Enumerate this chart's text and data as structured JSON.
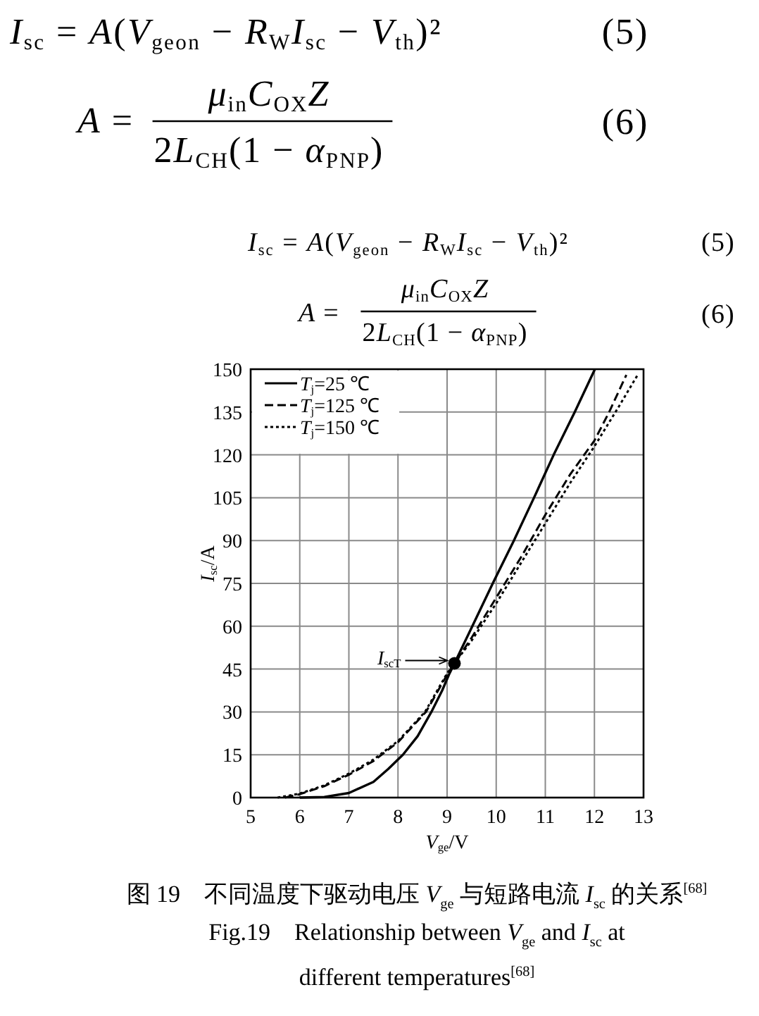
{
  "chart_data": {
    "type": "line",
    "xlabel": "V$_{ge}$/V",
    "ylabel": "I$_{sc}$/A",
    "xlim": [
      5,
      13
    ],
    "xticks": [
      5,
      6,
      7,
      8,
      9,
      10,
      11,
      12,
      13
    ],
    "ylim": [
      0,
      150
    ],
    "yticks": [
      0,
      15,
      30,
      45,
      60,
      75,
      90,
      105,
      120,
      135,
      150
    ],
    "grid": true,
    "legend": "top left",
    "series": [
      {
        "name": "T$_{j}$=25 ℃",
        "color": "#000000",
        "line_style": "solid",
        "x": [
          6.0,
          6.5,
          7,
          7.5,
          7.8,
          8.1,
          8.4,
          8.68,
          8.9,
          9.05,
          9.15,
          9.5,
          9.93,
          10.36,
          10.77,
          11.17,
          11.6,
          12.01
        ],
        "values": [
          0,
          0.2,
          1.6,
          5.5,
          10,
          15,
          21.5,
          30,
          37.5,
          43.5,
          47,
          59.5,
          75,
          90,
          105,
          120,
          135,
          150
        ]
      },
      {
        "name": "T$_{j}$=125 ℃",
        "color": "#000000",
        "line_style": "dashed",
        "x": [
          5.7,
          6,
          6.5,
          7,
          7.5,
          8,
          8.57,
          9,
          9.15,
          9.5,
          10,
          10.5,
          11,
          11.5,
          12,
          12.3,
          12.65
        ],
        "values": [
          0,
          1.2,
          4,
          8,
          12.8,
          19.4,
          30,
          43,
          47,
          56,
          70,
          84,
          99,
          113,
          125,
          135,
          148
        ]
      },
      {
        "name": "T$_{j}$=150 ℃",
        "color": "#000000",
        "line_style": "dotted",
        "x": [
          5.55,
          6,
          6.5,
          7,
          7.5,
          8,
          8.55,
          9,
          9.15,
          9.5,
          10,
          10.5,
          11,
          11.5,
          12,
          12.5,
          12.88
        ],
        "values": [
          0,
          1.4,
          4.3,
          8.4,
          13.3,
          19.8,
          30,
          43.5,
          47,
          55,
          68,
          82,
          96,
          110,
          123,
          137,
          148
        ]
      },
      {
        "type": "scatter",
        "color": "#000000",
        "marker": "circle",
        "x": [
          9.15
        ],
        "values": [
          47
        ]
      }
    ],
    "annotations": [
      "I$_{sc}$ = A(V$_{geon}$ − R$_{W}$I$_{sc}$ − V$_{th}$)²",
      "(5)",
      "A =",
      "μ$_{in}$C$_{OX}$Z",
      "2L$_{CH}$(1 − α$_{PNP}$)",
      "(6)",
      "I$_{sc}$ = A(V$_{geon}$ − R$_{W}$I$_{sc}$ − V$_{th}$)²",
      "(5)",
      "A =",
      "μ$_{in}$C$_{OX}$Z",
      "2L$_{CH}$(1 − α$_{PNP}$)",
      "(6)",
      {
        "text": "I$_{scT}$",
        "x": 9.15,
        "y": 47
      },
      "图 19　不同温度下驱动电压 V$_{ge}$ 与短路电流 I$_{sc}$ 的关系$^{[68]}$",
      "Fig.19　Relationship between V$_{ge}$ and I$_{sc}$ at different temperatures$^{[68]}$"
    ]
  }
}
